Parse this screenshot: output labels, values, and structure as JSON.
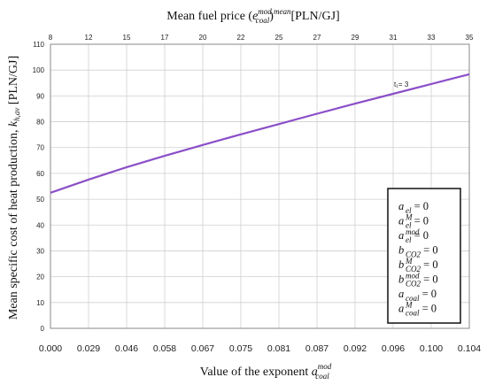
{
  "chart_data": {
    "type": "line",
    "top_axis_title": {
      "prefix": "Mean fuel price (",
      "base": "e",
      "sup": "mod",
      "sub": "coal",
      "outer_sup": "mean",
      "suffix": ") [PLN/GJ]"
    },
    "ylabel": {
      "text": "Mean specific cost of heat production, ",
      "var": "k",
      "sub": "h,av",
      "unit": " [PLN/GJ]"
    },
    "xlabel": {
      "text": "Value of the exponent ",
      "var": "a",
      "sup": "mod",
      "sub": "coal"
    },
    "categories": [
      "0.000",
      "0.029",
      "0.046",
      "0.058",
      "0.067",
      "0.075",
      "0.081",
      "0.087",
      "0.092",
      "0.096",
      "0.100",
      "0.104"
    ],
    "top_tick_labels": [
      "8",
      "12",
      "15",
      "17",
      "20",
      "22",
      "25",
      "27",
      "29",
      "31",
      "33",
      "35"
    ],
    "y_ticks": [
      0,
      10,
      20,
      30,
      40,
      50,
      60,
      70,
      80,
      90,
      100,
      110
    ],
    "ylim": [
      0,
      110
    ],
    "grid": true,
    "series": [
      {
        "color": "#8B4FC8",
        "x_index": [
          0,
          1,
          2,
          3,
          4,
          5,
          6,
          7,
          8,
          9,
          10,
          11
        ],
        "values": [
          52.5,
          57.6,
          62.4,
          66.8,
          71.0,
          75.1,
          79.1,
          83.1,
          87.0,
          90.8,
          94.6,
          98.4
        ]
      }
    ],
    "annotation": "t₁= 3",
    "legend_position": "bottom-right",
    "legend": [
      {
        "var": "a",
        "sub": "el",
        "sup": "",
        "eq": " = 0"
      },
      {
        "var": "a",
        "sub": "el",
        "sup": "M",
        "eq": " = 0"
      },
      {
        "var": "a",
        "sub": "el",
        "sup": "mod",
        "eq": " = 0"
      },
      {
        "var": "b",
        "sub": "CO2",
        "sup": "",
        "eq": " = 0"
      },
      {
        "var": "b",
        "sub": "CO2",
        "sup": "M",
        "eq": " = 0"
      },
      {
        "var": "b",
        "sub": "CO2",
        "sup": "mod",
        "eq": " = 0"
      },
      {
        "var": "a",
        "sub": "coal",
        "sup": "",
        "eq": " = 0"
      },
      {
        "var": "a",
        "sub": "coal",
        "sup": "M",
        "eq": " = 0"
      }
    ]
  }
}
